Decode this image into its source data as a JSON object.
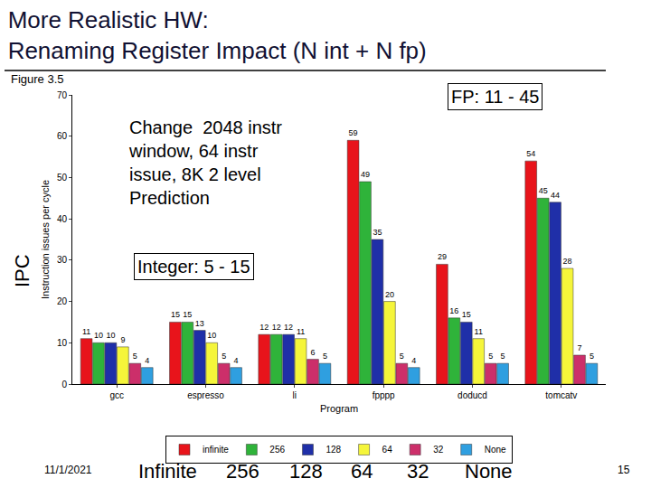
{
  "chart_data": {
    "type": "bar",
    "title": "More Realistic HW:\nRenaming Register Impact (N int + N fp)",
    "subtitle": "Figure 3.5",
    "x_label": "Program",
    "y_label": "Instruction issues per cycle",
    "categories": [
      "gcc",
      "espresso",
      "li",
      "fpppp",
      "doducd",
      "tomcatv"
    ],
    "series": [
      {
        "name": "infinite",
        "color": "#e8141b",
        "values": [
          11,
          15,
          12,
          59,
          29,
          54
        ]
      },
      {
        "name": "256",
        "color": "#2fb33a",
        "values": [
          10,
          15,
          12,
          49,
          16,
          45
        ]
      },
      {
        "name": "128",
        "color": "#1f2fa8",
        "values": [
          10,
          13,
          12,
          35,
          15,
          44
        ]
      },
      {
        "name": "64",
        "color": "#f5f53a",
        "values": [
          9,
          10,
          11,
          20,
          11,
          28
        ]
      },
      {
        "name": "32",
        "color": "#cc2f6a",
        "values": [
          5,
          5,
          6,
          5,
          5,
          7
        ]
      },
      {
        "name": "None",
        "color": "#2f9fe0",
        "values": [
          4,
          4,
          5,
          4,
          5,
          5
        ]
      }
    ],
    "ylim": [
      0,
      70
    ],
    "yticks": [
      0,
      10,
      20,
      30,
      40,
      50,
      60,
      70
    ],
    "grid": false,
    "data_labels": true,
    "legend": "bottom",
    "annotations": [
      "Change  2048 instr\nwindow, 64 instr\nissue, 8K 2 level\nPrediction",
      "Integer: 5 - 15",
      "FP: 11 - 45",
      "IPC"
    ],
    "footer": {
      "date": "11/1/2021",
      "page": "15",
      "labels": [
        "Infinite",
        "256",
        "128",
        "64",
        "32",
        "None"
      ]
    }
  }
}
